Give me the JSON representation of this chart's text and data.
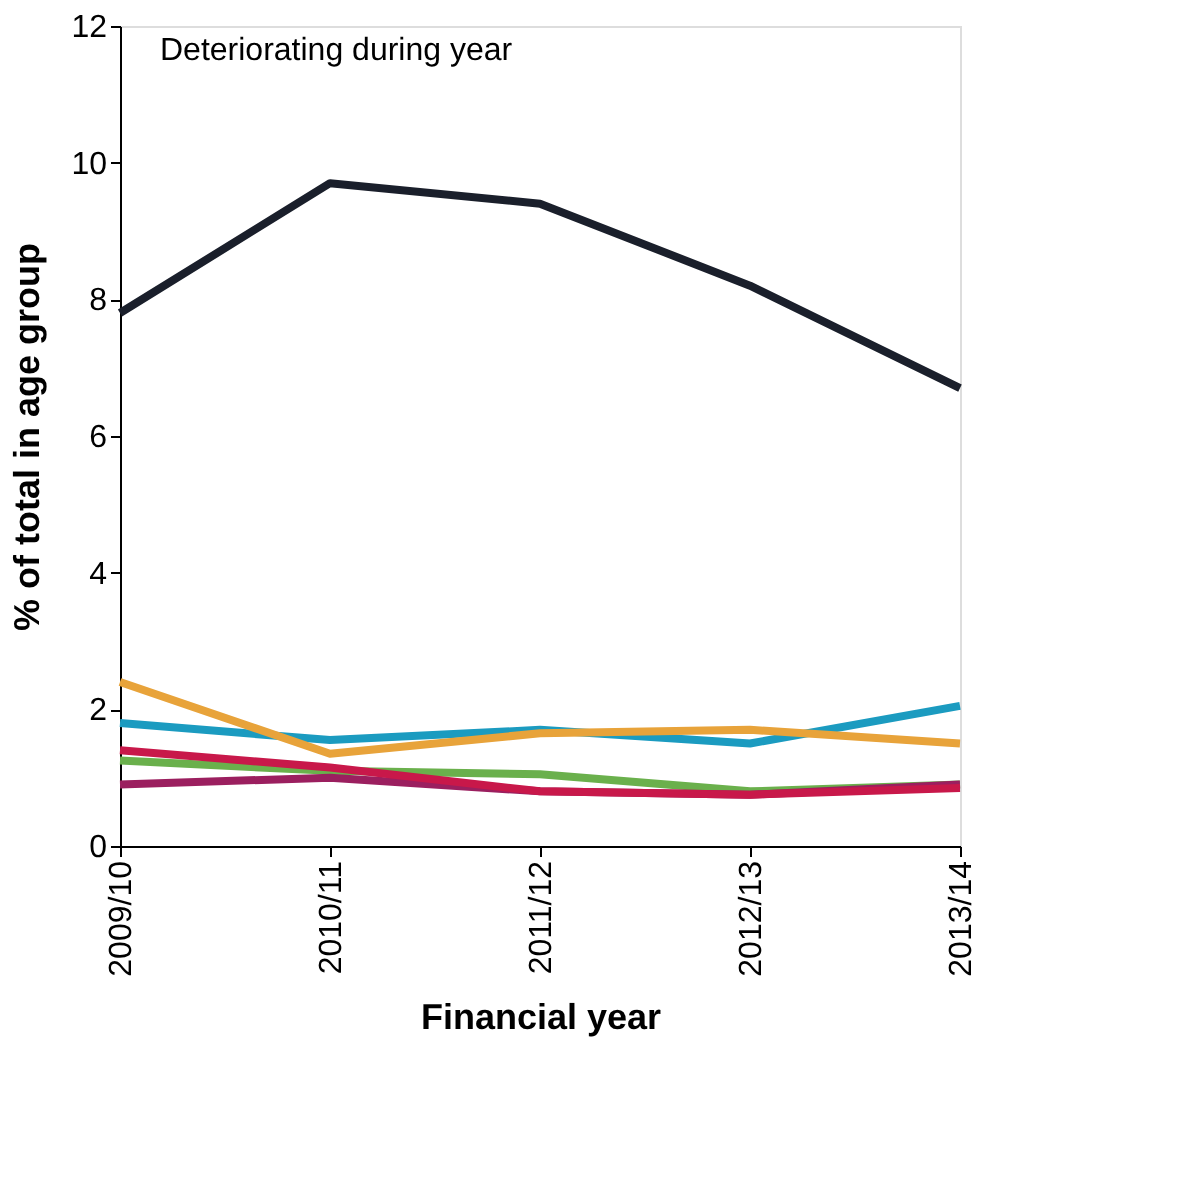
{
  "chart_data": {
    "type": "line",
    "title": "Deteriorating during year",
    "xlabel": "Financial year",
    "ylabel": "% of total in age group",
    "categories": [
      "2009/10",
      "2010/11",
      "2011/12",
      "2012/13",
      "2013/14"
    ],
    "series": [
      {
        "color": "#1b9bc0",
        "values": [
          1.8,
          1.55,
          1.7,
          1.5,
          2.05
        ]
      },
      {
        "color": "#6ab04c",
        "values": [
          1.25,
          1.1,
          1.05,
          0.8,
          0.9
        ]
      },
      {
        "color": "#9b1f5f",
        "values": [
          0.9,
          1.0,
          0.8,
          0.75,
          0.9
        ]
      },
      {
        "color": "#c8184a",
        "values": [
          1.4,
          1.15,
          0.8,
          0.75,
          0.85
        ]
      },
      {
        "color": "#e8a33a",
        "values": [
          2.4,
          1.35,
          1.65,
          1.7,
          1.5
        ]
      },
      {
        "color": "#1a1f2b",
        "values": [
          7.8,
          9.7,
          9.4,
          8.2,
          6.7
        ]
      }
    ],
    "ylim": [
      0,
      12
    ],
    "yticks": [
      0,
      2,
      4,
      6,
      8,
      10,
      12
    ],
    "grid": false,
    "legend": false,
    "marker": "none",
    "line_style": "solid"
  }
}
